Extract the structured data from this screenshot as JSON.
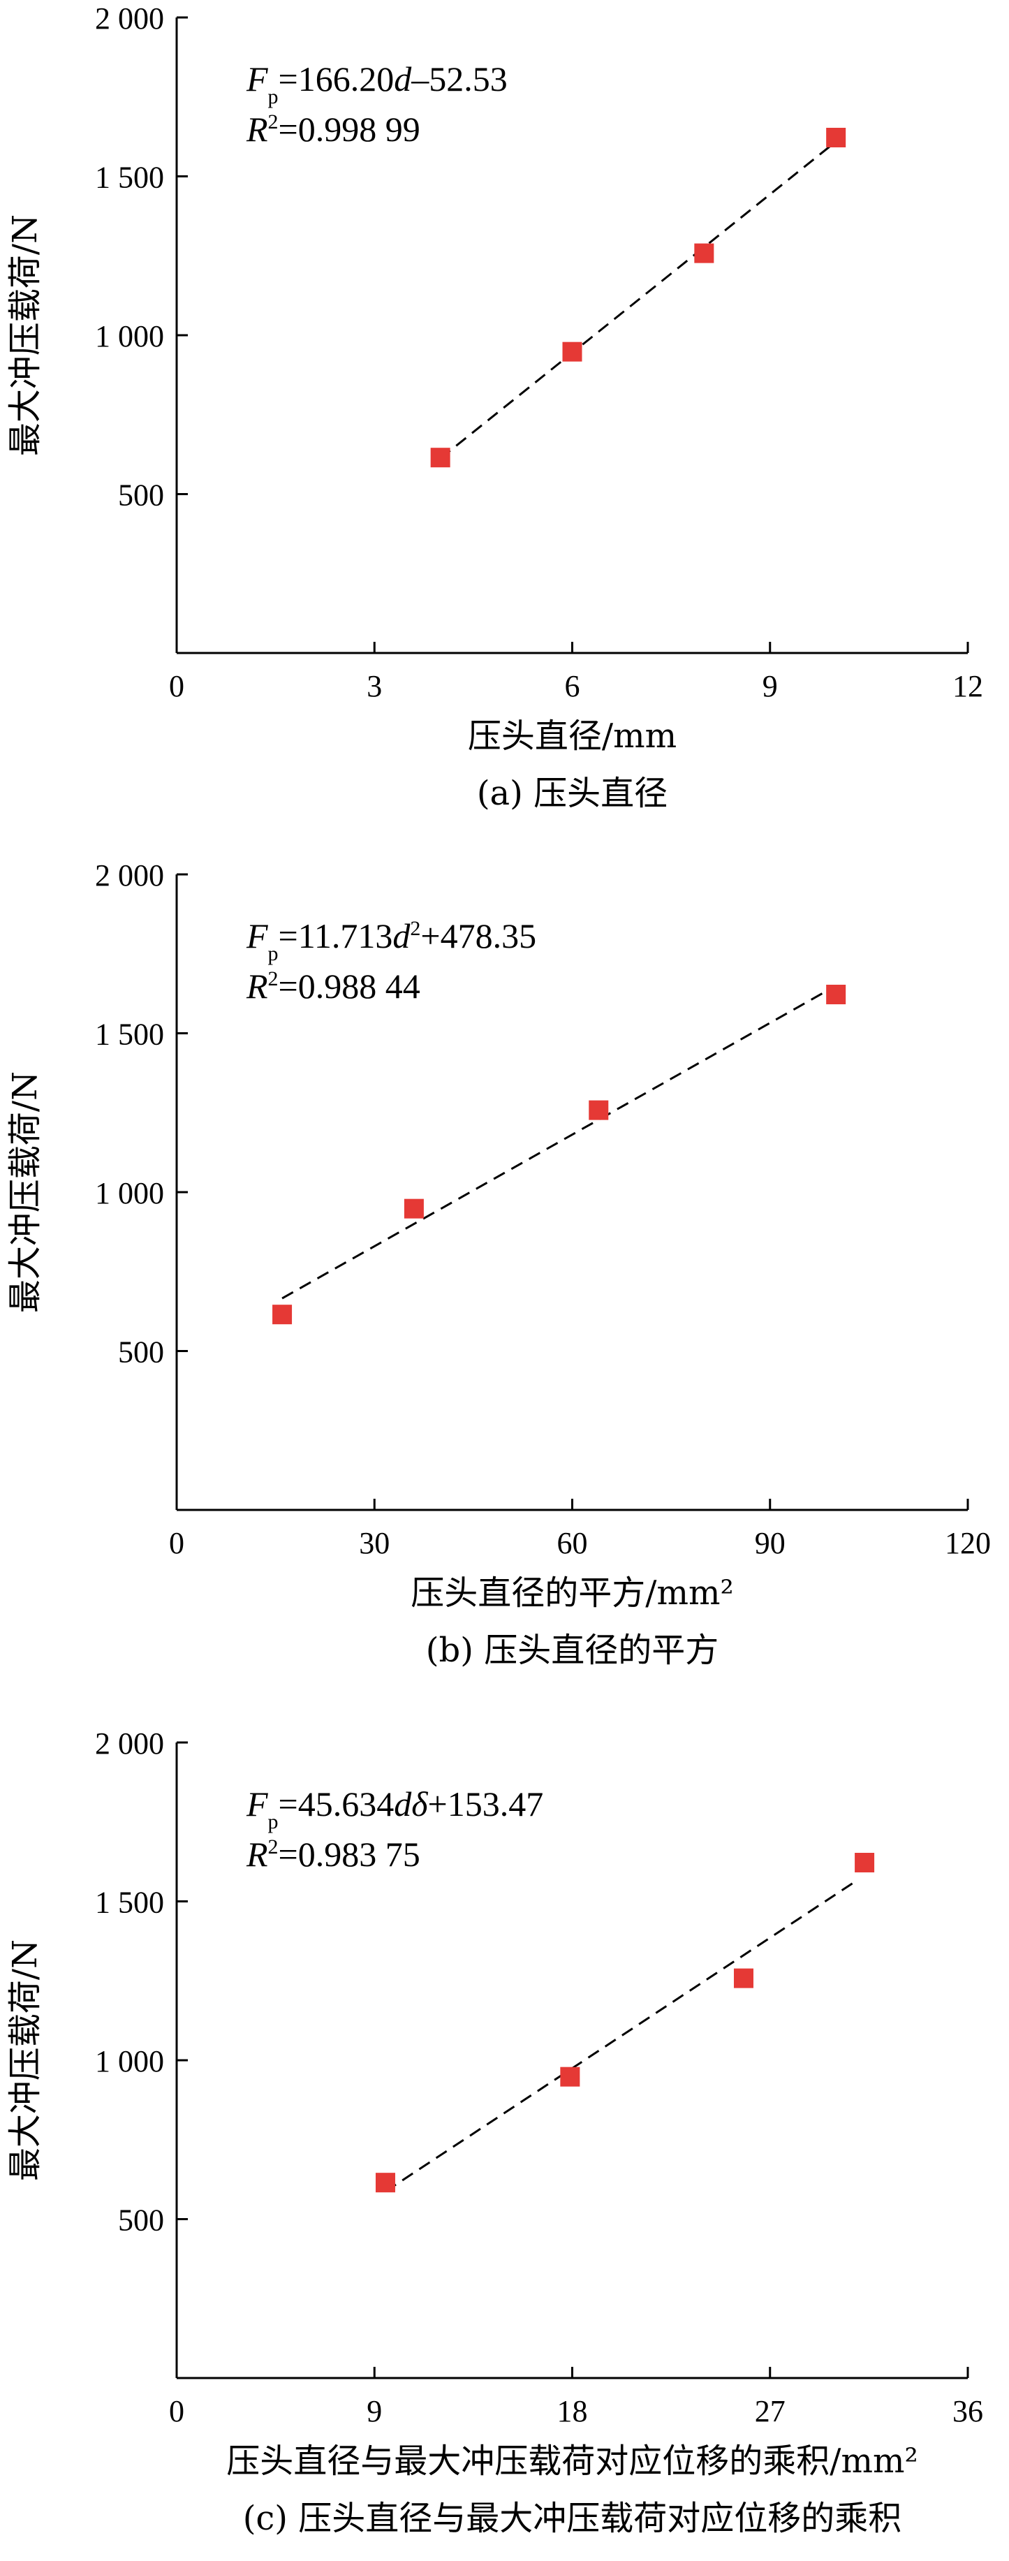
{
  "chart_data": [
    {
      "type": "scatter",
      "ylabel": "最大冲压载荷/N",
      "xlabel": "压头直径/mm",
      "caption": "(a) 压头直径",
      "x_ticks": [
        "0",
        "3",
        "6",
        "9",
        "12"
      ],
      "y_ticks": [
        "500",
        "1 000",
        "1 500",
        "2 000"
      ],
      "xlim": [
        0,
        12
      ],
      "ylim": [
        0,
        2000
      ],
      "y_tick_values": [
        500,
        1000,
        1500,
        2000
      ],
      "series": [
        {
          "x": [
            4,
            6,
            8,
            10
          ],
          "y": [
            615,
            948,
            1258,
            1622
          ]
        }
      ],
      "fit": {
        "x": [
          4,
          10
        ],
        "y": [
          612.27,
          1609.47
        ]
      },
      "equation": {
        "lhs_main": "F",
        "lhs_sub": "p",
        "rhs_a": "=166.20",
        "var": "d",
        "exp": "",
        "rhs_b": "–52.53"
      },
      "r2": {
        "main": "R",
        "sup": "2",
        "value": "=0.998 99"
      },
      "marker_color": "#e53935"
    },
    {
      "type": "scatter",
      "ylabel": "最大冲压载荷/N",
      "xlabel": "压头直径的平方/mm²",
      "caption": "(b) 压头直径的平方",
      "x_ticks": [
        "0",
        "30",
        "60",
        "90",
        "120"
      ],
      "y_ticks": [
        "500",
        "1 000",
        "1 500",
        "2 000"
      ],
      "xlim": [
        0,
        120
      ],
      "ylim": [
        0,
        2000
      ],
      "y_tick_values": [
        500,
        1000,
        1500,
        2000
      ],
      "series": [
        {
          "x": [
            16,
            36,
            64,
            100
          ],
          "y": [
            615,
            948,
            1258,
            1622
          ]
        }
      ],
      "fit": {
        "x": [
          16,
          100
        ],
        "y": [
          665.76,
          1649.65
        ]
      },
      "equation": {
        "lhs_main": "F",
        "lhs_sub": "p",
        "rhs_a": "=11.713",
        "var": "d",
        "exp": "2",
        "rhs_b": "+478.35"
      },
      "r2": {
        "main": "R",
        "sup": "2",
        "value": "=0.988 44"
      },
      "marker_color": "#e53935"
    },
    {
      "type": "scatter",
      "ylabel": "最大冲压载荷/N",
      "xlabel": "压头直径与最大冲压载荷对应位移的乘积/mm²",
      "caption": "(c) 压头直径与最大冲压载荷对应位移的乘积",
      "x_ticks": [
        "0",
        "9",
        "18",
        "27",
        "36"
      ],
      "y_ticks": [
        "500",
        "1 000",
        "1 500",
        "2 000"
      ],
      "xlim": [
        0,
        36
      ],
      "ylim": [
        0,
        2000
      ],
      "y_tick_values": [
        500,
        1000,
        1500,
        2000
      ],
      "series": [
        {
          "x": [
            9.5,
            17.9,
            25.8,
            31.3
          ],
          "y": [
            615,
            948,
            1258,
            1622
          ]
        }
      ],
      "fit": {
        "x": [
          9.5,
          31.0
        ],
        "y": [
          587,
          1568
        ]
      },
      "equation": {
        "lhs_main": "F",
        "lhs_sub": "p",
        "rhs_a": "=45.634",
        "var": "dδ",
        "exp": "",
        "rhs_b": "+153.47"
      },
      "r2": {
        "main": "R",
        "sup": "2",
        "value": "=0.983 75"
      },
      "marker_color": "#e53935"
    }
  ]
}
